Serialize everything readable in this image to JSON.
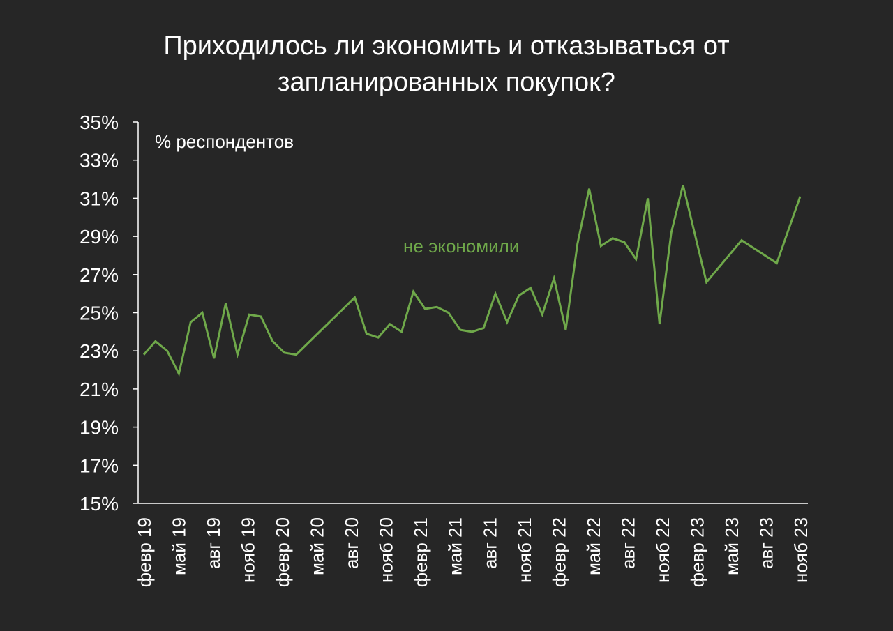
{
  "chart_data": {
    "type": "line",
    "title_lines": [
      "Приходилось ли экономить и отказываться от",
      "запланированных покупок?"
    ],
    "unit_label": "% респондентов",
    "ylim": [
      15,
      35
    ],
    "y_ticks": [
      "15%",
      "17%",
      "19%",
      "21%",
      "23%",
      "25%",
      "27%",
      "29%",
      "31%",
      "33%",
      "35%"
    ],
    "y_tick_values": [
      15,
      17,
      19,
      21,
      23,
      25,
      27,
      29,
      31,
      33,
      35
    ],
    "x_tick_labels": [
      "февр 19",
      "май 19",
      "авг 19",
      "нояб 19",
      "февр 20",
      "май 20",
      "авг 20",
      "нояб 20",
      "февр 21",
      "май 21",
      "авг 21",
      "нояб 21",
      "февр 22",
      "май 22",
      "авг 22",
      "нояб 22",
      "февр 23",
      "май 23",
      "авг 23",
      "нояб 23"
    ],
    "grid": false,
    "series": [
      {
        "name": "не экономили",
        "color": "#6fa84a",
        "values": [
          22.8,
          23.5,
          23.0,
          21.8,
          24.5,
          25.0,
          22.6,
          25.5,
          22.8,
          24.9,
          24.8,
          23.5,
          22.9,
          22.8,
          null,
          null,
          null,
          null,
          25.8,
          23.9,
          23.7,
          24.4,
          24.0,
          26.1,
          25.2,
          25.3,
          25.0,
          24.1,
          24.0,
          24.2,
          26.0,
          24.5,
          25.9,
          26.3,
          24.9,
          26.8,
          24.1,
          28.6,
          31.5,
          28.5,
          28.9,
          28.7,
          27.8,
          31.0,
          24.4,
          29.2,
          31.7,
          null,
          26.6,
          null,
          null,
          28.8,
          null,
          null,
          27.6,
          null,
          31.1
        ]
      }
    ]
  }
}
